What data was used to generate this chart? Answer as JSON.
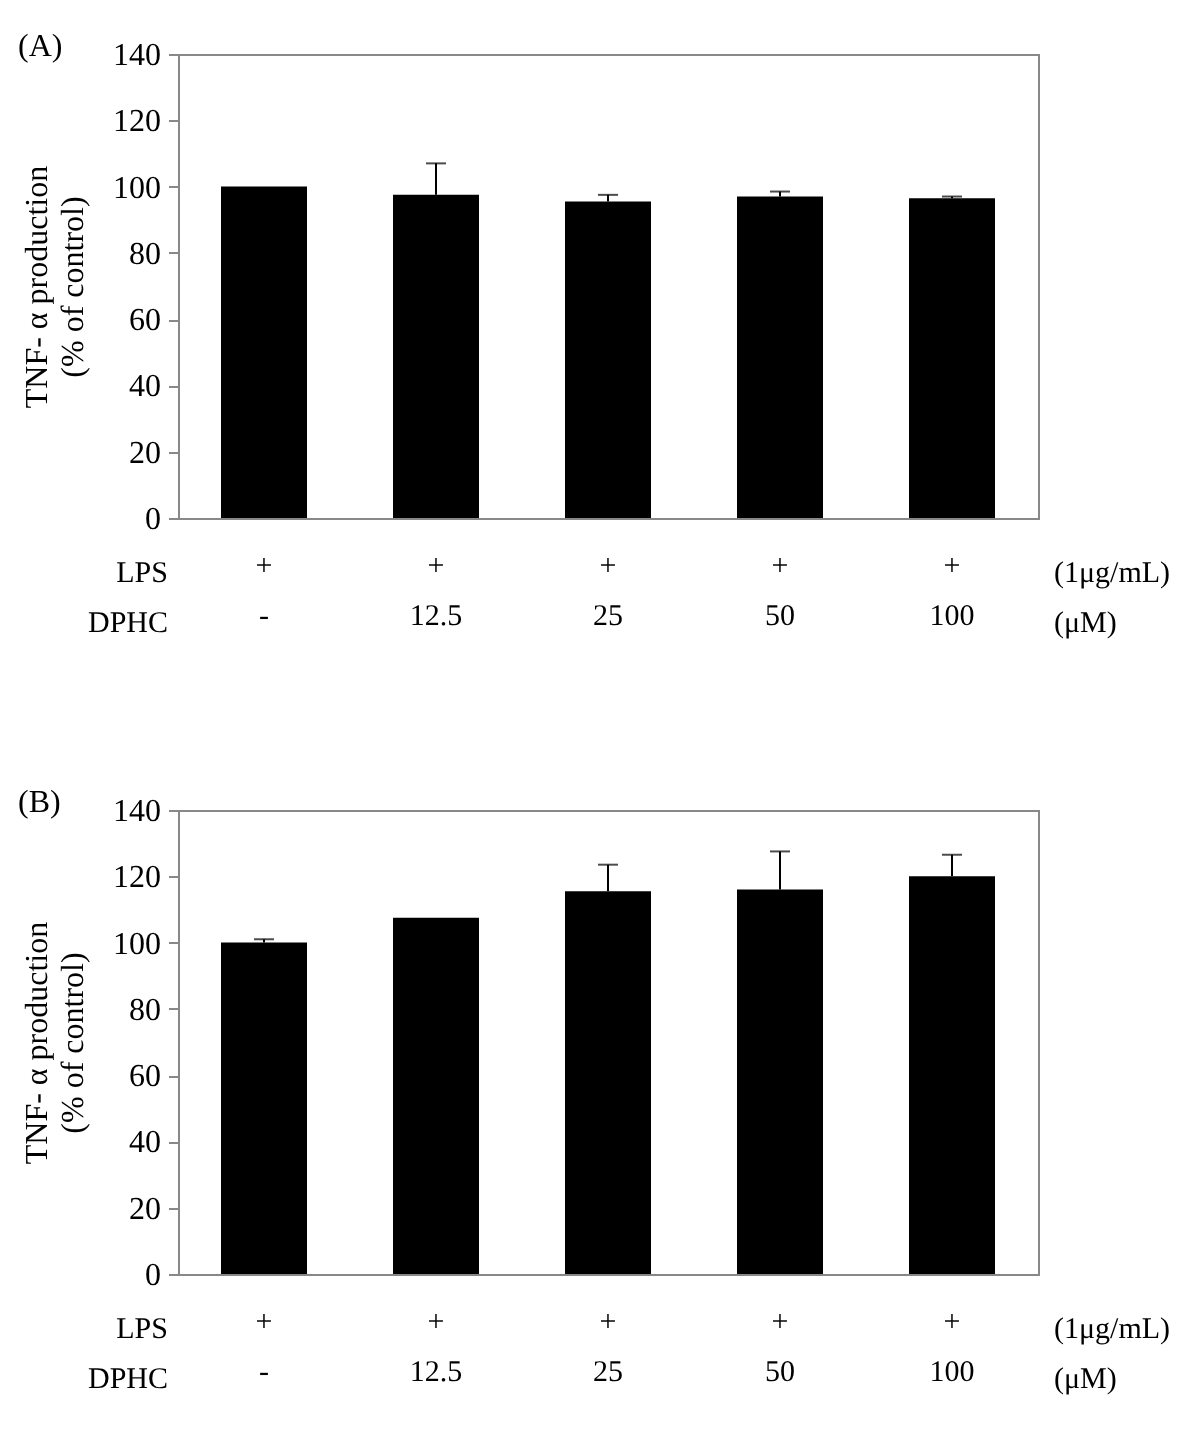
{
  "chart_data": [
    {
      "type": "bar",
      "title": "(A)",
      "ylabel": "TNF- α production\n(% of control)",
      "categories": [
        "+\n-",
        "+\n12.5",
        "+\n25",
        "+\n50",
        "+\n100"
      ],
      "color": "#000000",
      "values": [
        100,
        97.5,
        95.5,
        97,
        96.5
      ],
      "errors": [
        null,
        [
          97.5,
          107
        ],
        [
          95.5,
          97.5
        ],
        [
          97,
          98.5
        ],
        [
          96.5,
          97
        ]
      ],
      "ylim": [
        0,
        140
      ],
      "yticks": [
        0,
        20,
        40,
        60,
        80,
        100,
        120,
        140
      ],
      "grid": false,
      "annotations": [
        "LPS",
        "DPHC",
        "(1μg/mL)",
        "(μM)"
      ]
    },
    {
      "type": "bar",
      "title": "(B)",
      "ylabel": "TNF- α production\n(% of control)",
      "categories": [
        "+\n-",
        "+\n12.5",
        "+\n25",
        "+\n50",
        "+\n100"
      ],
      "color": "#000000",
      "values": [
        100,
        107.5,
        115.5,
        116,
        120
      ],
      "errors": [
        [
          100,
          101
        ],
        null,
        [
          115.5,
          123.5
        ],
        [
          116,
          127.5
        ],
        [
          120,
          126.5
        ]
      ],
      "ylim": [
        0,
        140
      ],
      "yticks": [
        0,
        20,
        40,
        60,
        80,
        100,
        120,
        140
      ],
      "grid": false,
      "annotations": [
        "LPS",
        "DPHC",
        "(1μg/mL)",
        "(μM)"
      ]
    }
  ]
}
